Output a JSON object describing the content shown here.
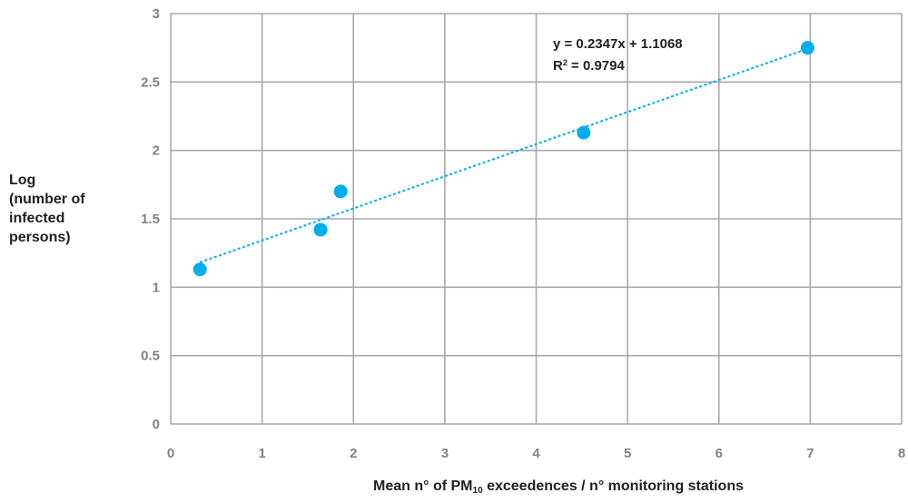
{
  "chart_data": {
    "type": "scatter",
    "ylabel_lines": [
      "Log",
      "(number of",
      "infected",
      "persons)"
    ],
    "xlabel": {
      "before": "Mean n° of PM",
      "subscript": "10",
      "after": " exceedences / n° monitoring stations"
    },
    "xlim": [
      0,
      8
    ],
    "ylim": [
      0,
      3
    ],
    "x_ticks": [
      "0",
      "1",
      "2",
      "3",
      "4",
      "5",
      "6",
      "7",
      "8"
    ],
    "y_ticks": [
      "0",
      "0.5",
      "1",
      "1.5",
      "2",
      "2.5",
      "3"
    ],
    "x_tick_values": [
      0,
      1,
      2,
      3,
      4,
      5,
      6,
      7,
      8
    ],
    "y_tick_values": [
      0,
      0.5,
      1,
      1.5,
      2,
      2.5,
      3
    ],
    "grid": true,
    "points": [
      {
        "x": 0.32,
        "y": 1.13
      },
      {
        "x": 1.64,
        "y": 1.42
      },
      {
        "x": 1.86,
        "y": 1.7
      },
      {
        "x": 4.52,
        "y": 2.13
      },
      {
        "x": 6.97,
        "y": 2.75
      }
    ],
    "trendline": {
      "type": "linear",
      "slope": 0.2347,
      "intercept": 1.1068,
      "x_range": [
        0.32,
        6.97
      ]
    },
    "equation": {
      "line1": "y = 0.2347x + 1.1068",
      "r2_prefix": "R",
      "r2_sup": "2",
      "r2_suffix": " = 0.9794"
    },
    "colors": {
      "marker": "#00aeef",
      "trendline": "#00aeef",
      "grid": "#a7a9ac",
      "tick_text": "#808285",
      "label_text": "#231f20"
    }
  }
}
